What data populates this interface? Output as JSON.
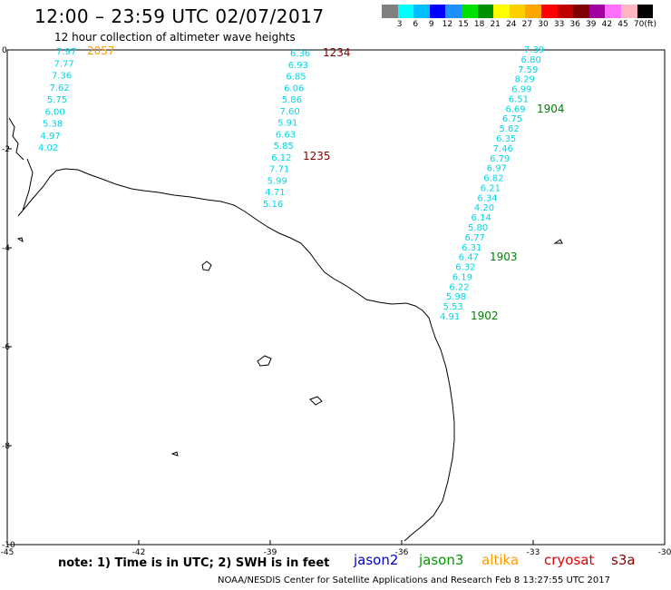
{
  "header": {
    "title": "12:00 – 23:59 UTC 02/07/2017",
    "subtitle": "12 hour collection of altimeter wave heights"
  },
  "legend": {
    "colors": [
      "#808080",
      "#00ffff",
      "#00bfff",
      "#0000ff",
      "#1e90ff",
      "#00e000",
      "#009000",
      "#ffff00",
      "#ffd000",
      "#ffa500",
      "#ff0000",
      "#c00000",
      "#800000",
      "#a000a0",
      "#ff70ff",
      "#ffb6c1",
      "#000000"
    ],
    "ticks": [
      "3",
      "6",
      "9",
      "12",
      "15",
      "18",
      "21",
      "24",
      "27",
      "30",
      "33",
      "36",
      "39",
      "42",
      "45",
      "70"
    ],
    "unit": "(ft)"
  },
  "map": {
    "lon_range": [
      -45,
      -30
    ],
    "lat_range": [
      -10,
      0
    ],
    "x_ticks": [
      "-45",
      "-42",
      "-39",
      "-36",
      "-33",
      "-30"
    ],
    "y_ticks": [
      "0",
      "-2",
      "-4",
      "-6",
      "-8",
      "-10"
    ]
  },
  "tracks": [
    {
      "name": "track-2057",
      "time": "2057",
      "time_color": "#ff9900",
      "text_color": "#00d6e6",
      "values": [
        "7.97",
        "7.77",
        "7.36",
        "7.62",
        "5.75",
        "6.00",
        "5.38",
        "4.97",
        "4.02"
      ]
    },
    {
      "name": "track-1234",
      "times": [
        {
          "label": "1234",
          "color": "#800000"
        },
        {
          "label": "1235",
          "color": "#800000"
        }
      ],
      "text_color": "#00d6e6",
      "values": [
        "6.36",
        "6.93",
        "6.85",
        "6.06",
        "5.86",
        "7.60",
        "5.91",
        "6.63",
        "5.85",
        "6.12",
        "7.71",
        "5.99",
        "4.71",
        "5.16"
      ]
    },
    {
      "name": "track-1904",
      "times": [
        {
          "label": "1904",
          "color": "#008000"
        },
        {
          "label": "1903",
          "color": "#008000"
        },
        {
          "label": "1902",
          "color": "#008000"
        }
      ],
      "text_color": "#00d6e6",
      "values": [
        "7.39",
        "6.80",
        "7.59",
        "8.29",
        "6.99",
        "6.51",
        "6.69",
        "6.75",
        "5.62",
        "6.35",
        "7.46",
        "6.79",
        "6.97",
        "6.82",
        "6.21",
        "6.34",
        "4.20",
        "6.14",
        "5.80",
        "6.77",
        "6.31",
        "6.47",
        "6.32",
        "6.19",
        "6.22",
        "5.98",
        "5.53",
        "4.91"
      ]
    }
  ],
  "footer": {
    "note": "note:  1) Time is in UTC;  2) SWH is in feet",
    "satellites": [
      {
        "label": "jason2",
        "color": "#0000cc"
      },
      {
        "label": "jason3",
        "color": "#009900"
      },
      {
        "label": "altika",
        "color": "#ff9900"
      },
      {
        "label": "cryosat",
        "color": "#dd0000"
      },
      {
        "label": "s3a",
        "color": "#880000"
      }
    ],
    "credit": "NOAA/NESDIS Center for Satellite Applications and Research     Feb  8 13:27:55 UTC 2017"
  }
}
